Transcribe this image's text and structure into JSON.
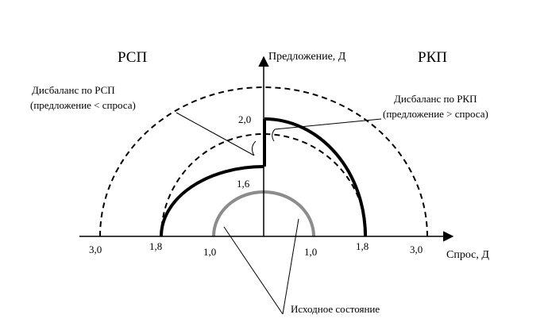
{
  "regions": {
    "left": "РСП",
    "right": "РКП"
  },
  "axes": {
    "y_label": "Предложение, Д",
    "x_label": "Спрос, Д"
  },
  "x_ticks": [
    "3,0",
    "1,8",
    "1,0",
    "1,0",
    "1,8",
    "3,0"
  ],
  "y_ticks": [
    "2,0",
    "1,6"
  ],
  "annotations": {
    "imbalance_left_line1": "Дисбаланс по РСП",
    "imbalance_left_line2": "(предложение < спроса)",
    "imbalance_right_line1": "Дисбаланс по РКП",
    "imbalance_right_line2": "(предложение > спроса)",
    "initial_state": "Исходное состояние"
  },
  "colors": {
    "ink": "#000000",
    "initial_arc": "#8c8c8c"
  }
}
